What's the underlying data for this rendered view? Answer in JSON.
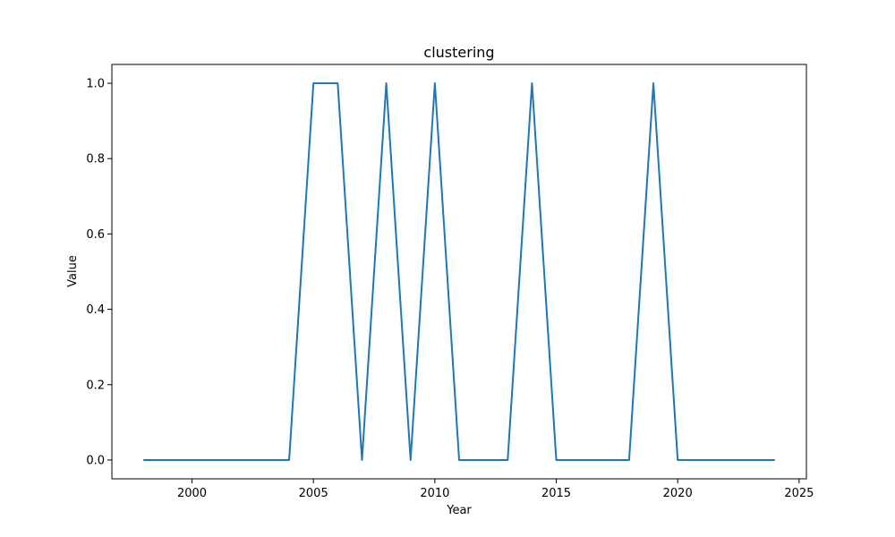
{
  "chart_data": {
    "type": "line",
    "title": "clustering",
    "xlabel": "Year",
    "ylabel": "Value",
    "xlim": [
      1996.7,
      2025.3
    ],
    "ylim": [
      -0.05,
      1.05
    ],
    "xticks": [
      2000,
      2005,
      2010,
      2015,
      2020,
      2025
    ],
    "yticks": [
      0.0,
      0.2,
      0.4,
      0.6,
      0.8,
      1.0
    ],
    "xtick_labels": [
      "2000",
      "2005",
      "2010",
      "2015",
      "2020",
      "2025"
    ],
    "ytick_labels": [
      "0.0",
      "0.2",
      "0.4",
      "0.6",
      "0.8",
      "1.0"
    ],
    "grid": false,
    "series": [
      {
        "color": "#1f77b4",
        "x": [
          1998,
          1999,
          2000,
          2001,
          2002,
          2003,
          2004,
          2005,
          2006,
          2007,
          2008,
          2009,
          2010,
          2011,
          2012,
          2013,
          2014,
          2015,
          2016,
          2017,
          2018,
          2019,
          2020,
          2021,
          2022,
          2023,
          2024
        ],
        "values": [
          0,
          0,
          0,
          0,
          0,
          0,
          0,
          1,
          1,
          0,
          1,
          0,
          1,
          0,
          0,
          0,
          1,
          0,
          0,
          0,
          0,
          1,
          0,
          0,
          0,
          0,
          0
        ]
      }
    ]
  }
}
